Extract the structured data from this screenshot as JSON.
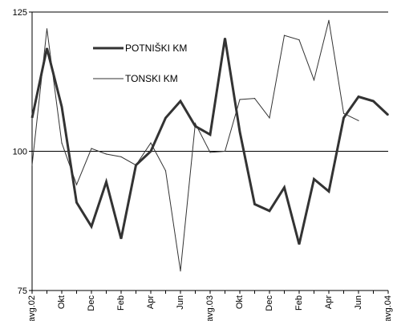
{
  "chart_data": {
    "type": "line",
    "ylim": [
      75,
      125
    ],
    "yticks": [
      75,
      100,
      125
    ],
    "reference_line": 100,
    "grid": false,
    "legend_position": "top-left",
    "x_tick_labels": [
      {
        "index": 0,
        "label": "avg.02"
      },
      {
        "index": 2,
        "label": "Okt"
      },
      {
        "index": 4,
        "label": "Dec"
      },
      {
        "index": 6,
        "label": "Feb"
      },
      {
        "index": 8,
        "label": "Apr"
      },
      {
        "index": 10,
        "label": "Jun"
      },
      {
        "index": 12,
        "label": "avg.03"
      },
      {
        "index": 14,
        "label": "Okt"
      },
      {
        "index": 16,
        "label": "Dec"
      },
      {
        "index": 18,
        "label": "Feb"
      },
      {
        "index": 20,
        "label": "Apr"
      },
      {
        "index": 22,
        "label": "Jun"
      },
      {
        "index": 24,
        "label": "avg.04"
      }
    ],
    "series": [
      {
        "name": "POTNIŠKI KM",
        "style": "thick",
        "values": [
          106,
          118.5,
          108,
          90.8,
          86.5,
          94.5,
          84.3,
          97.5,
          100,
          106,
          109,
          104.5,
          103,
          120.3,
          103.5,
          90.5,
          89.3,
          93.5,
          83.3,
          95,
          92.8,
          106,
          109.8,
          109,
          106.5
        ]
      },
      {
        "name": "TONSKI KM",
        "style": "thin",
        "values": [
          97.5,
          122,
          101.5,
          94,
          100.5,
          99.5,
          99,
          97.5,
          101.5,
          96.5,
          78.5,
          105,
          99.8,
          100,
          109.3,
          109.5,
          106,
          120.8,
          120,
          112.8,
          123.5,
          106.8,
          105.5
        ]
      }
    ]
  }
}
